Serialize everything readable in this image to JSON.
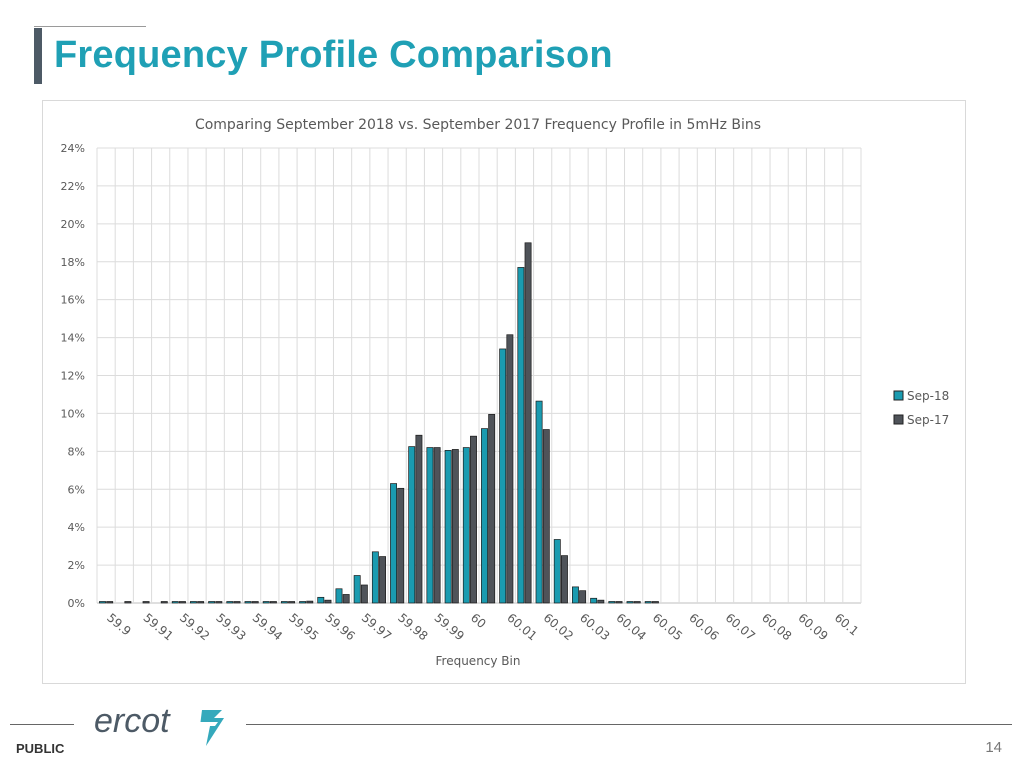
{
  "page": {
    "title": "Frequency Profile Comparison",
    "footer_label": "PUBLIC",
    "page_number": "14",
    "logo_text": "ercot"
  },
  "colors": {
    "title": "#1fa0b5",
    "sep18": "#1a9bb0",
    "sep17": "#4f5359",
    "grid": "#dcdcdc"
  },
  "chart_data": {
    "type": "bar",
    "title": "Comparing September 2018 vs. September 2017 Frequency Profile in 5mHz Bins",
    "xlabel": "Frequency Bin",
    "ylabel": "",
    "ylim": [
      0,
      24
    ],
    "yticks": [
      "0%",
      "2%",
      "4%",
      "6%",
      "8%",
      "10%",
      "12%",
      "14%",
      "16%",
      "18%",
      "20%",
      "22%",
      "24%"
    ],
    "x_tick_labels": [
      "59.9",
      "59.91",
      "59.92",
      "59.93",
      "59.94",
      "59.95",
      "59.96",
      "59.97",
      "59.98",
      "59.99",
      "60",
      "60.01",
      "60.02",
      "60.03",
      "60.04",
      "60.05",
      "60.06",
      "60.07",
      "60.08",
      "60.09",
      "60.1"
    ],
    "bins": 42,
    "grid": true,
    "legend_position": "right",
    "series": [
      {
        "name": "Sep-18",
        "values": [
          0.03,
          0,
          0,
          0,
          0.02,
          0.02,
          0.02,
          0.02,
          0.02,
          0.02,
          0.02,
          0.04,
          0.3,
          0.75,
          1.45,
          2.7,
          6.3,
          8.25,
          8.2,
          8.05,
          8.2,
          9.2,
          13.4,
          17.7,
          10.65,
          3.35,
          0.85,
          0.25,
          0.08,
          0.03,
          0.02,
          0,
          0,
          0,
          0,
          0,
          0,
          0,
          0,
          0,
          0,
          0
        ]
      },
      {
        "name": "Sep-17",
        "values": [
          0.03,
          0.03,
          0.03,
          0.02,
          0.02,
          0.02,
          0.02,
          0.02,
          0.02,
          0.02,
          0.02,
          0.1,
          0.15,
          0.45,
          0.95,
          2.45,
          6.05,
          8.85,
          8.2,
          8.1,
          8.8,
          9.95,
          14.15,
          19.0,
          9.15,
          2.5,
          0.65,
          0.15,
          0.05,
          0.03,
          0.02,
          0,
          0,
          0,
          0,
          0,
          0,
          0,
          0,
          0,
          0,
          0
        ]
      }
    ]
  }
}
